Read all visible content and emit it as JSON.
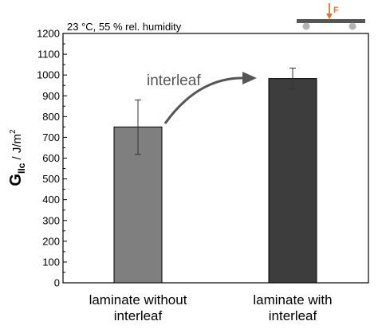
{
  "chart_data": {
    "type": "bar",
    "categories": [
      [
        "laminate without",
        "interleaf"
      ],
      [
        "laminate with",
        "interleaf"
      ]
    ],
    "values": [
      750,
      983
    ],
    "error_low": [
      618,
      932
    ],
    "error_high": [
      880,
      1033
    ],
    "bar_colors": [
      "#7f7f7f",
      "#3d3d3d"
    ],
    "ylim": [
      0,
      1200
    ],
    "yticks": [
      0,
      100,
      200,
      300,
      400,
      500,
      600,
      700,
      800,
      900,
      1000,
      1100,
      1200
    ],
    "ylabel": {
      "symbol": "G",
      "subscript": "IIc",
      "unit": " / J/m",
      "superscript": "2"
    },
    "annotation": "23 °C, 55 % rel. humidity",
    "arrow_label": "interleaf",
    "grid": false,
    "inset_force_label": "F",
    "colors": {
      "axis": "#000000",
      "arrow": "#555555",
      "inset_beam": "#555555",
      "inset_force": "#e8731e",
      "inset_support": "#b3b3b3"
    }
  }
}
